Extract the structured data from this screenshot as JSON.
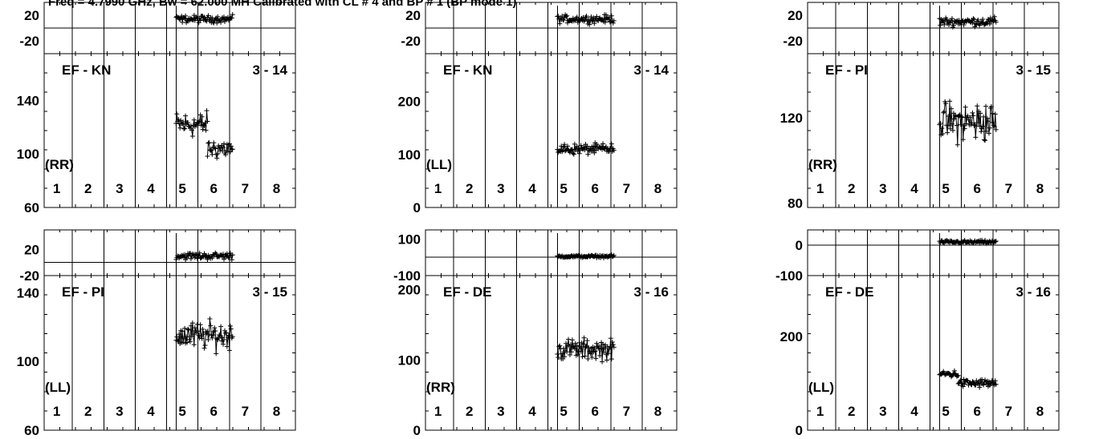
{
  "header": "Freq = 4.7990 GHz, Bw = 62.000 MH  Calibrated with CL # 4 and BP # 1 (BP mode 1)",
  "chart_data": [
    {
      "type": "scatter",
      "baseline": "EF - KN",
      "time": "3 - 14",
      "pol": "(RR)",
      "antennas": [
        "1",
        "2",
        "3",
        "4",
        "5",
        "6",
        "7",
        "8"
      ],
      "phase_ticks": [
        "20",
        "-20"
      ],
      "phase_ylim": [
        -40,
        40
      ],
      "amp_ticks": [
        "140",
        "100",
        "60"
      ],
      "amp_ylim": [
        60,
        175
      ],
      "amp_seg": [
        {
          "from": 4.8,
          "to": 5.8,
          "mean": 122,
          "spread": 14
        },
        {
          "from": 5.8,
          "to": 6.6,
          "mean": 104,
          "spread": 12
        }
      ],
      "phase_seg": [
        {
          "from": 4.8,
          "to": 6.6,
          "mean": 14,
          "spread": 8
        }
      ]
    },
    {
      "type": "scatter",
      "baseline": "EF - KN",
      "time": "3 - 14",
      "pol": "(LL)",
      "antennas": [
        "1",
        "2",
        "3",
        "4",
        "5",
        "6",
        "7",
        "8"
      ],
      "phase_ticks": [
        "20",
        "-20"
      ],
      "phase_ylim": [
        -40,
        40
      ],
      "amp_ticks": [
        "200",
        "100",
        "0"
      ],
      "amp_ylim": [
        0,
        290
      ],
      "amp_seg": [
        {
          "from": 4.8,
          "to": 6.6,
          "mean": 110,
          "spread": 15
        }
      ],
      "phase_seg": [
        {
          "from": 4.8,
          "to": 6.6,
          "mean": 14,
          "spread": 9
        }
      ]
    },
    {
      "type": "scatter",
      "baseline": "EF - PI",
      "time": "3 - 15",
      "pol": "(RR)",
      "antennas": [
        "1",
        "2",
        "3",
        "4",
        "5",
        "6",
        "7",
        "8"
      ],
      "phase_ticks": [
        "20",
        "-20"
      ],
      "phase_ylim": [
        -40,
        40
      ],
      "amp_ticks": [
        "120",
        "80"
      ],
      "amp_ylim": [
        78,
        150
      ],
      "amp_seg": [
        {
          "from": 4.8,
          "to": 6.6,
          "mean": 118,
          "spread": 14
        }
      ],
      "phase_seg": [
        {
          "from": 4.8,
          "to": 6.6,
          "mean": 10,
          "spread": 10
        }
      ]
    },
    {
      "type": "scatter",
      "baseline": "EF - PI",
      "time": "3 - 15",
      "pol": "(LL)",
      "antennas": [
        "1",
        "2",
        "3",
        "4",
        "5",
        "6",
        "7",
        "8"
      ],
      "phase_ticks": [
        "20",
        "-20"
      ],
      "phase_ylim": [
        -20,
        50
      ],
      "amp_ticks": [
        "140",
        "100",
        "60"
      ],
      "amp_ylim": [
        60,
        150
      ],
      "amp_seg": [
        {
          "from": 4.8,
          "to": 6.6,
          "mean": 115,
          "spread": 12
        }
      ],
      "phase_seg": [
        {
          "from": 4.8,
          "to": 6.6,
          "mean": 10,
          "spread": 8
        }
      ]
    },
    {
      "type": "scatter",
      "baseline": "EF - DE",
      "time": "3 - 16",
      "pol": "(RR)",
      "antennas": [
        "1",
        "2",
        "3",
        "4",
        "5",
        "6",
        "7",
        "8"
      ],
      "phase_ticks": [
        "100",
        "-100"
      ],
      "phase_ylim": [
        -100,
        150
      ],
      "amp_ticks": [
        "200",
        "100",
        "0"
      ],
      "amp_ylim": [
        0,
        220
      ],
      "amp_seg": [
        {
          "from": 4.8,
          "to": 6.6,
          "mean": 115,
          "spread": 22
        }
      ],
      "phase_seg": [
        {
          "from": 4.8,
          "to": 6.6,
          "mean": 5,
          "spread": 10
        }
      ]
    },
    {
      "type": "scatter",
      "baseline": "EF - DE",
      "time": "3 - 16",
      "pol": "(LL)",
      "antennas": [
        "1",
        "2",
        "3",
        "4",
        "5",
        "6",
        "7",
        "8"
      ],
      "phase_ticks": [
        "0",
        "-100"
      ],
      "phase_ylim": [
        -100,
        50
      ],
      "amp_ticks": [
        "200",
        "0"
      ],
      "amp_ylim": [
        0,
        330
      ],
      "amp_seg": [
        {
          "from": 4.8,
          "to": 5.4,
          "mean": 120,
          "spread": 12
        },
        {
          "from": 5.4,
          "to": 6.6,
          "mean": 100,
          "spread": 14
        }
      ],
      "phase_seg": [
        {
          "from": 4.8,
          "to": 6.6,
          "mean": 10,
          "spread": 8
        }
      ]
    }
  ]
}
